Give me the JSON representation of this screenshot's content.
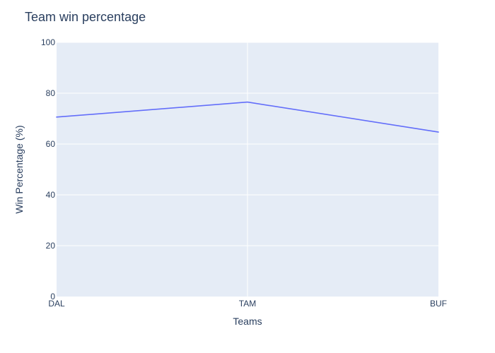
{
  "chart_data": {
    "type": "line",
    "title": "Team win percentage",
    "xlabel": "Teams",
    "ylabel": "Win Percentage (%)",
    "categories": [
      "DAL",
      "TAM",
      "BUF"
    ],
    "series": [
      {
        "values": [
          70.6,
          76.5,
          64.7
        ]
      }
    ],
    "ylim": [
      0,
      100
    ],
    "yticks": [
      0,
      20,
      40,
      60,
      80,
      100
    ],
    "grid": true,
    "colors": {
      "line": "#636efa",
      "plot_bg": "#e5ecf6",
      "grid": "#ffffff",
      "text": "#2a3f5f"
    }
  }
}
